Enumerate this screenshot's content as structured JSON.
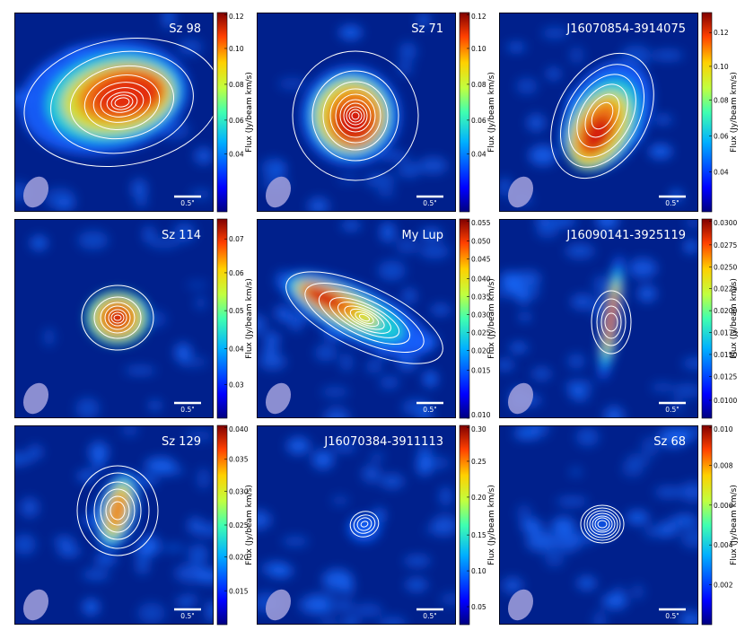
{
  "panels": [
    {
      "title": "Sz 98",
      "scale_label": "0.5\"",
      "colorbar": {
        "label": "Flux (Jy/beam km/s)",
        "ticks": [
          "0.12",
          "0.10",
          "0.08",
          "0.06",
          "0.04"
        ]
      }
    },
    {
      "title": "Sz 71",
      "scale_label": "0.5\"",
      "colorbar": {
        "label": "Flux (Jy/beam km/s)",
        "ticks": [
          "0.12",
          "0.10",
          "0.08",
          "0.06",
          "0.04"
        ]
      }
    },
    {
      "title": "J16070854-3914075",
      "scale_label": "0.5\"",
      "colorbar": {
        "label": "Flux (Jy/beam km/s)",
        "ticks": [
          "0.12",
          "0.10",
          "0.08",
          "0.06",
          "0.04"
        ]
      }
    },
    {
      "title": "Sz 114",
      "scale_label": "0.5\"",
      "colorbar": {
        "label": "Flux (Jy/beam km/s)",
        "ticks": [
          "0.07",
          "0.06",
          "0.05",
          "0.04",
          "0.03"
        ]
      }
    },
    {
      "title": "My Lup",
      "scale_label": "0.5\"",
      "colorbar": {
        "label": "Flux (Jy/beam km/s)",
        "ticks": [
          "0.055",
          "0.050",
          "0.045",
          "0.040",
          "0.035",
          "0.030",
          "0.025",
          "0.020",
          "0.015",
          "0.010"
        ]
      }
    },
    {
      "title": "J16090141-3925119",
      "scale_label": "0.5\"",
      "colorbar": {
        "label": "Flux (Jy/beam km/s)",
        "ticks": [
          "0.0300",
          "0.0275",
          "0.0250",
          "0.0225",
          "0.0200",
          "0.0175",
          "0.0150",
          "0.0125",
          "0.0100"
        ]
      }
    },
    {
      "title": "Sz 129",
      "scale_label": "0.5\"",
      "colorbar": {
        "label": "Flux (Jy/beam km/s)",
        "ticks": [
          "0.040",
          "0.035",
          "0.030",
          "0.025",
          "0.020",
          "0.015"
        ]
      }
    },
    {
      "title": "J16070384-3911113",
      "scale_label": "0.5\"",
      "colorbar": {
        "label": "Flux (Jy/beam km/s)",
        "ticks": [
          "0.30",
          "0.25",
          "0.20",
          "0.15",
          "0.10",
          "0.05"
        ]
      }
    },
    {
      "title": "Sz 68",
      "scale_label": "0.5\"",
      "colorbar": {
        "label": "Flux (Jy/beam km/s)",
        "ticks": [
          "0.010",
          "0.008",
          "0.006",
          "0.004",
          "0.002"
        ]
      }
    }
  ],
  "colors": {
    "background": "#00208c",
    "contour": "#ffffff",
    "beam": "#9a9ad8"
  }
}
